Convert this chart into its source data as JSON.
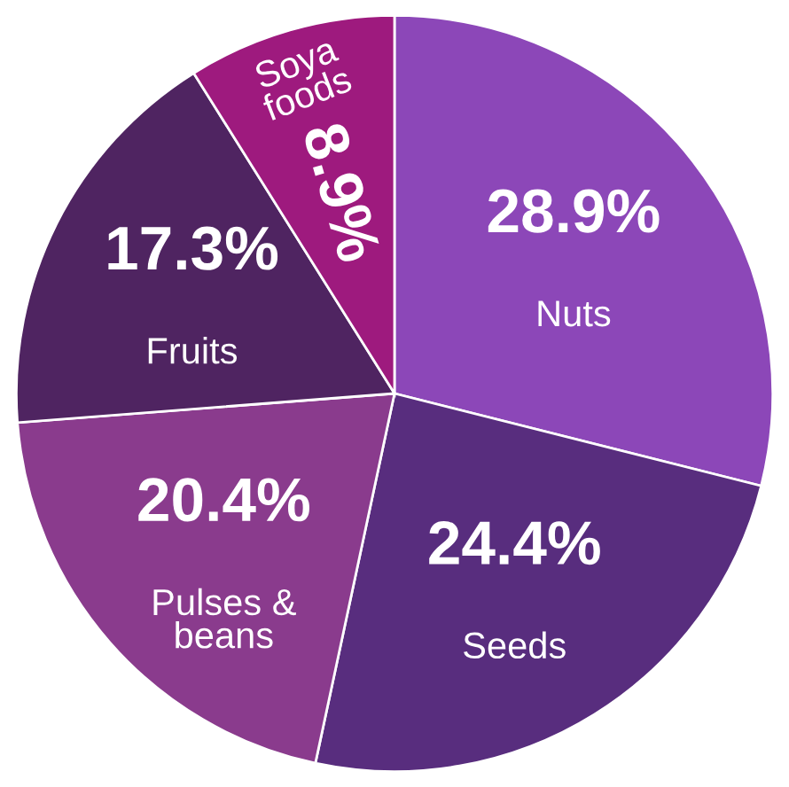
{
  "chart_data": {
    "type": "pie",
    "categories": [
      "Nuts",
      "Seeds",
      "Pulses &\nbeans",
      "Fruits",
      "Soya\nfoods"
    ],
    "values": [
      28.9,
      24.4,
      20.4,
      17.3,
      8.9
    ],
    "value_labels": [
      "28.9%",
      "24.4%",
      "20.4%",
      "17.3%",
      "8.9%"
    ],
    "colors": [
      "#8c47b8",
      "#582d7e",
      "#8a3b8d",
      "#4f2461",
      "#9e1a7e"
    ],
    "legend": false
  }
}
